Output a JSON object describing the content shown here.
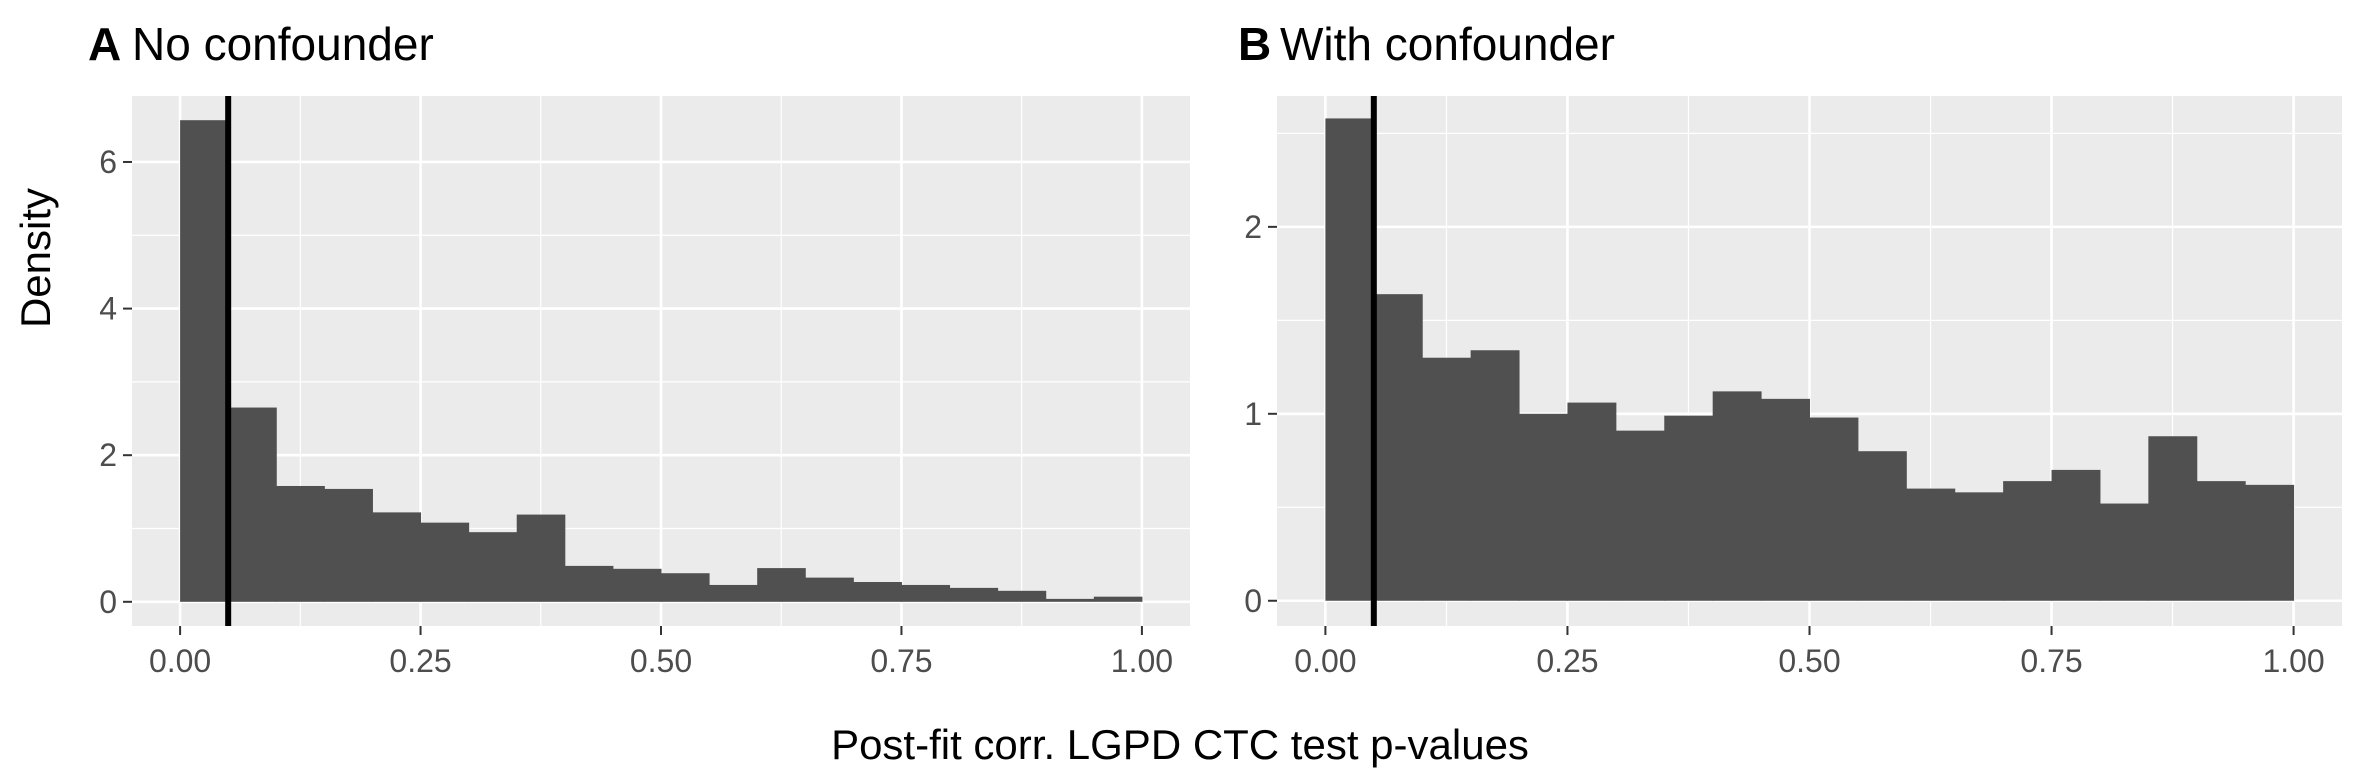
{
  "figure": {
    "ylabel": "Density",
    "xlabel": "Post-fit corr. LGPD CTC test p-values"
  },
  "colors": {
    "bar": "#505050",
    "panel_background": "#ebebeb",
    "grid": "#ffffff",
    "vline": "#000000",
    "tick_text": "#4d4d4d"
  },
  "chart_data": [
    {
      "type": "bar",
      "tag": "A",
      "title": "No confounder",
      "xlabel": "Post-fit corr. LGPD CTC test p-values",
      "ylabel": "Density",
      "bin_width": 0.05,
      "x": [
        0.025,
        0.075,
        0.125,
        0.175,
        0.225,
        0.275,
        0.325,
        0.375,
        0.425,
        0.475,
        0.525,
        0.575,
        0.625,
        0.675,
        0.725,
        0.775,
        0.825,
        0.875,
        0.925,
        0.975
      ],
      "values": [
        6.57,
        2.65,
        1.58,
        1.54,
        1.22,
        1.08,
        0.95,
        1.19,
        0.49,
        0.45,
        0.39,
        0.23,
        0.46,
        0.33,
        0.27,
        0.23,
        0.19,
        0.15,
        0.04,
        0.07
      ],
      "xlim": [
        -0.05,
        1.05
      ],
      "ylim": [
        -0.33,
        6.9
      ],
      "xticks": [
        0,
        0.25,
        0.5,
        0.75,
        1
      ],
      "xtick_labels": [
        "0.00",
        "0.25",
        "0.50",
        "0.75",
        "1.00"
      ],
      "yticks": [
        0,
        2,
        4,
        6
      ],
      "ytick_labels": [
        "0",
        "2",
        "4",
        "6"
      ],
      "vline": 0.05,
      "grid": true
    },
    {
      "type": "bar",
      "tag": "B",
      "title": "With confounder",
      "xlabel": "Post-fit corr. LGPD CTC test p-values",
      "ylabel": "Density",
      "bin_width": 0.05,
      "x": [
        0.025,
        0.075,
        0.125,
        0.175,
        0.225,
        0.275,
        0.325,
        0.375,
        0.425,
        0.475,
        0.525,
        0.575,
        0.625,
        0.675,
        0.725,
        0.775,
        0.825,
        0.875,
        0.925,
        0.975
      ],
      "values": [
        2.58,
        1.64,
        1.3,
        1.34,
        1.0,
        1.06,
        0.91,
        0.99,
        1.12,
        1.08,
        0.98,
        0.8,
        0.6,
        0.58,
        0.64,
        0.7,
        0.52,
        0.88,
        0.64,
        0.62
      ],
      "xlim": [
        -0.05,
        1.05
      ],
      "ylim": [
        -0.135,
        2.7
      ],
      "xticks": [
        0,
        0.25,
        0.5,
        0.75,
        1
      ],
      "xtick_labels": [
        "0.00",
        "0.25",
        "0.50",
        "0.75",
        "1.00"
      ],
      "yticks": [
        0,
        1,
        2
      ],
      "ytick_labels": [
        "0",
        "1",
        "2"
      ],
      "vline": 0.05,
      "grid": true
    }
  ]
}
